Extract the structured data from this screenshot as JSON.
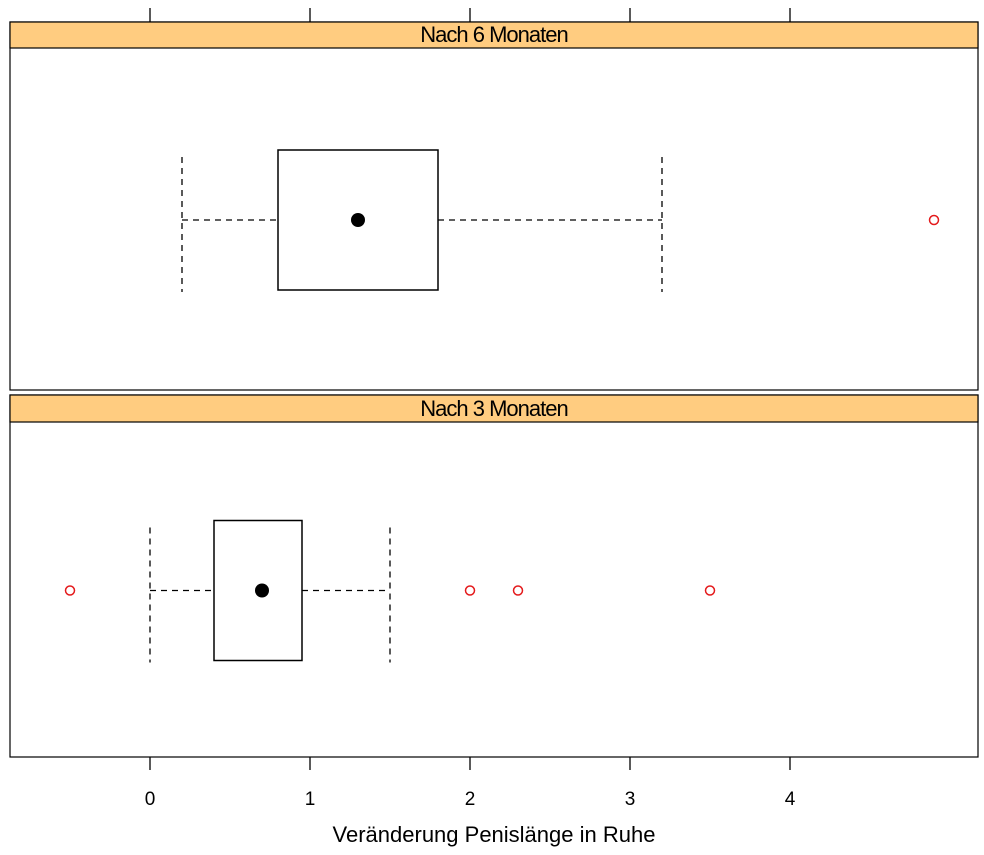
{
  "chart_data": {
    "type": "boxplot",
    "xlabel": "Veränderung Penislänge in Ruhe",
    "xlim": [
      -0.9,
      5.2
    ],
    "x_ticks": [
      0,
      1,
      2,
      3,
      4
    ],
    "tick_labels": [
      "0",
      "1",
      "2",
      "3",
      "4"
    ],
    "colors": {
      "strip": "#FFCC80",
      "outlier": "#E41A1C",
      "box": "#000000"
    },
    "panels": [
      {
        "name": "Nach 6 Monaten",
        "whisker_low": 0.2,
        "q1": 0.8,
        "median": 1.3,
        "q3": 1.8,
        "whisker_high": 3.2,
        "outliers": [
          4.9
        ]
      },
      {
        "name": "Nach 3 Monaten",
        "whisker_low": 0.0,
        "q1": 0.4,
        "median": 0.7,
        "q3": 0.95,
        "whisker_high": 1.5,
        "outliers": [
          -0.5,
          2.0,
          2.3,
          3.5
        ]
      }
    ]
  }
}
